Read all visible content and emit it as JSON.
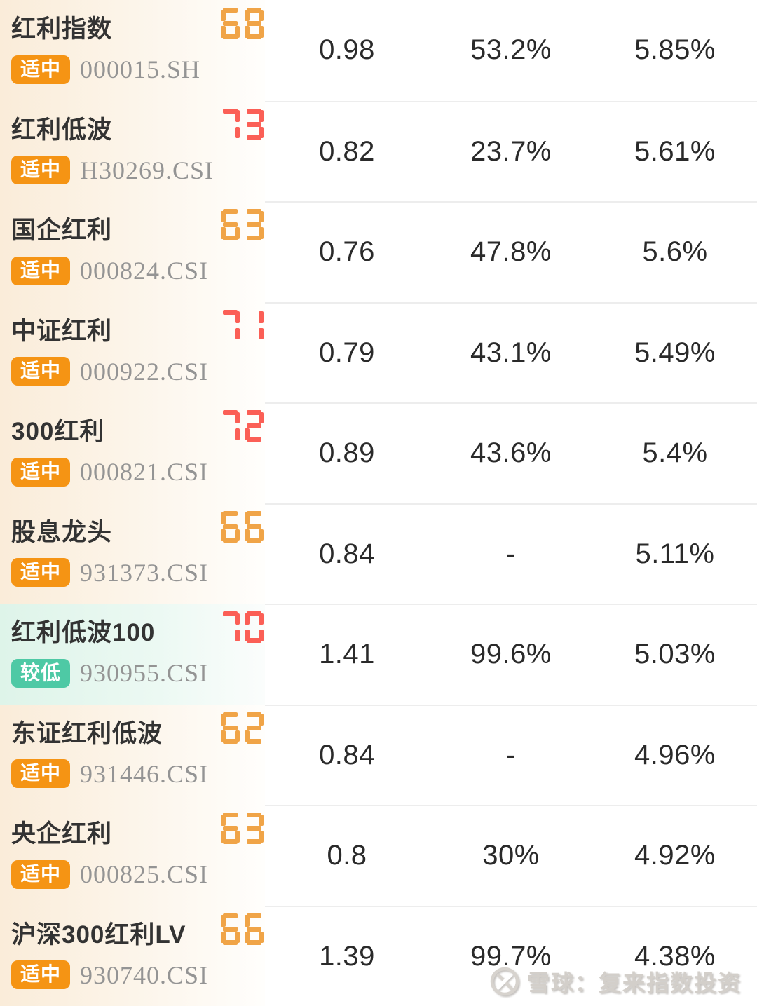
{
  "colors": {
    "badge_medium": "#f59414",
    "badge_low": "#4ec9a5",
    "score_orange": "#f0a447",
    "score_red": "#fb5f56",
    "highlight_row": "#e3f5ec"
  },
  "table": {
    "rows": [
      {
        "name": "红利指数",
        "badge": "适中",
        "badge_color": "medium",
        "code": "000015.SH",
        "score": "68",
        "score_color": "orange",
        "highlighted": false,
        "values": [
          "0.98",
          "53.2%",
          "5.85%"
        ]
      },
      {
        "name": "红利低波",
        "badge": "适中",
        "badge_color": "medium",
        "code": "H30269.CSI",
        "score": "73",
        "score_color": "red",
        "highlighted": false,
        "values": [
          "0.82",
          "23.7%",
          "5.61%"
        ]
      },
      {
        "name": "国企红利",
        "badge": "适中",
        "badge_color": "medium",
        "code": "000824.CSI",
        "score": "63",
        "score_color": "orange",
        "highlighted": false,
        "values": [
          "0.76",
          "47.8%",
          "5.6%"
        ]
      },
      {
        "name": "中证红利",
        "badge": "适中",
        "badge_color": "medium",
        "code": "000922.CSI",
        "score": "71",
        "score_color": "red",
        "highlighted": false,
        "values": [
          "0.79",
          "43.1%",
          "5.49%"
        ]
      },
      {
        "name": "300红利",
        "badge": "适中",
        "badge_color": "medium",
        "code": "000821.CSI",
        "score": "72",
        "score_color": "red",
        "highlighted": false,
        "values": [
          "0.89",
          "43.6%",
          "5.4%"
        ]
      },
      {
        "name": "股息龙头",
        "badge": "适中",
        "badge_color": "medium",
        "code": "931373.CSI",
        "score": "66",
        "score_color": "orange",
        "highlighted": false,
        "values": [
          "0.84",
          "-",
          "5.11%"
        ]
      },
      {
        "name": "红利低波100",
        "badge": "较低",
        "badge_color": "low",
        "code": "930955.CSI",
        "score": "70",
        "score_color": "red",
        "highlighted": true,
        "values": [
          "1.41",
          "99.6%",
          "5.03%"
        ]
      },
      {
        "name": "东证红利低波",
        "badge": "适中",
        "badge_color": "medium",
        "code": "931446.CSI",
        "score": "62",
        "score_color": "orange",
        "highlighted": false,
        "values": [
          "0.84",
          "-",
          "4.96%"
        ]
      },
      {
        "name": "央企红利",
        "badge": "适中",
        "badge_color": "medium",
        "code": "000825.CSI",
        "score": "63",
        "score_color": "orange",
        "highlighted": false,
        "values": [
          "0.8",
          "30%",
          "4.92%"
        ]
      },
      {
        "name": "沪深300红利LV",
        "badge": "适中",
        "badge_color": "medium",
        "code": "930740.CSI",
        "score": "66",
        "score_color": "orange",
        "highlighted": false,
        "values": [
          "1.39",
          "99.7%",
          "4.38%"
        ]
      }
    ]
  },
  "watermark": {
    "text": "雪球：复来指数投资",
    "logo": "snowball-icon"
  }
}
